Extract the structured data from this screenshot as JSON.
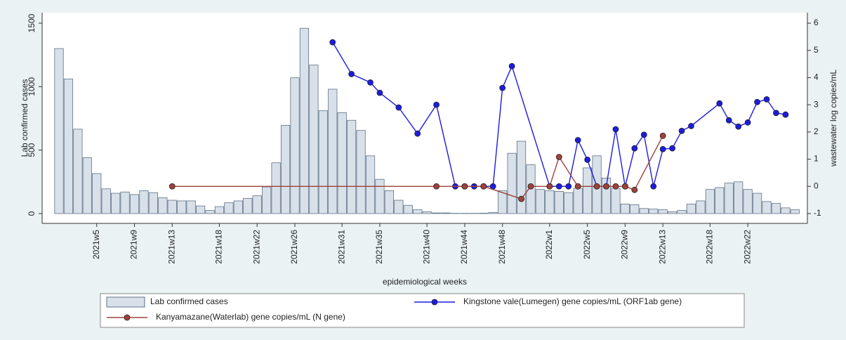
{
  "chart_data": {
    "type": "bar-line",
    "xlabel": "epidemiological weeks",
    "ylabel": "Lab confirmed cases",
    "y2label": "wastewater log copies/mL",
    "categories": [
      null,
      null,
      null,
      null,
      "2021w5",
      null,
      null,
      null,
      "2021w9",
      null,
      null,
      null,
      "2021w13",
      null,
      null,
      null,
      null,
      "2021w18",
      null,
      null,
      null,
      "2021w22",
      null,
      null,
      null,
      "2021w26",
      null,
      null,
      null,
      null,
      "2021w31",
      null,
      null,
      null,
      "2021w35",
      null,
      null,
      null,
      null,
      "2021w40",
      null,
      null,
      null,
      "2021w44",
      null,
      null,
      null,
      "2021w48",
      null,
      null,
      null,
      null,
      "2022w1",
      null,
      null,
      null,
      "2022w5",
      null,
      null,
      null,
      "2022w9",
      null,
      null,
      null,
      "2022w13",
      null,
      null,
      null,
      null,
      "2022w18",
      null,
      null,
      null,
      "2022w22",
      null,
      null,
      null,
      null,
      null
    ],
    "ylim": [
      0,
      1500
    ],
    "yticks": [
      0,
      500,
      1000,
      1500
    ],
    "y2lim": [
      -1,
      6
    ],
    "y2ticks": [
      -1,
      0,
      1,
      2,
      3,
      4,
      5,
      6
    ],
    "series": [
      {
        "name": "Lab confirmed cases",
        "type": "bar",
        "color": "#d8e0e9",
        "values": [
          1300,
          1060,
          665,
          440,
          315,
          195,
          160,
          170,
          150,
          180,
          165,
          125,
          105,
          100,
          100,
          60,
          25,
          55,
          85,
          100,
          120,
          140,
          210,
          400,
          695,
          1070,
          1460,
          1170,
          810,
          980,
          795,
          735,
          655,
          455,
          270,
          180,
          105,
          65,
          30,
          15,
          5,
          5,
          2,
          2,
          2,
          3,
          8,
          180,
          475,
          570,
          385,
          190,
          180,
          175,
          165,
          200,
          360,
          455,
          280,
          200,
          75,
          70,
          40,
          35,
          30,
          15,
          25,
          75,
          100,
          190,
          205,
          240,
          250,
          190,
          160,
          95,
          80,
          45,
          30
        ]
      },
      {
        "name": "Kingstone vale(Lumegen) gene copies/mL (ORF1ab gene)",
        "type": "line",
        "axis": "y2",
        "color": "#1c1ce0",
        "values": [
          null,
          null,
          null,
          null,
          null,
          null,
          null,
          null,
          null,
          null,
          null,
          null,
          null,
          null,
          null,
          null,
          null,
          null,
          null,
          null,
          null,
          null,
          null,
          null,
          null,
          null,
          null,
          null,
          null,
          5.3,
          null,
          4.13,
          null,
          3.82,
          3.44,
          null,
          2.9,
          null,
          1.94,
          null,
          3.0,
          null,
          0,
          0,
          0,
          0,
          0,
          3.62,
          4.42,
          null,
          null,
          null,
          0,
          0,
          0,
          1.7,
          0.98,
          0,
          0,
          2.1,
          0,
          1.4,
          1.9,
          0,
          1.37,
          1.4,
          2.04,
          2.22,
          null,
          null,
          3.05,
          2.43,
          2.2,
          2.35,
          3.1,
          3.2,
          2.7,
          2.64,
          null
        ]
      },
      {
        "name": "Kanyamazane(Waterlab) gene copies/mL (N gene)",
        "type": "line",
        "axis": "y2",
        "color": "#a0413b",
        "values": [
          null,
          null,
          null,
          null,
          null,
          null,
          null,
          null,
          null,
          null,
          null,
          null,
          0,
          null,
          null,
          null,
          null,
          null,
          null,
          null,
          null,
          null,
          null,
          null,
          null,
          null,
          null,
          null,
          null,
          null,
          null,
          null,
          null,
          null,
          null,
          null,
          null,
          null,
          null,
          null,
          0,
          null,
          null,
          0,
          null,
          0,
          null,
          null,
          null,
          -0.46,
          0,
          null,
          0,
          1.08,
          null,
          0,
          null,
          0,
          0,
          0,
          0,
          -0.13,
          null,
          null,
          1.86,
          null,
          null,
          null,
          null,
          null,
          null,
          null,
          null,
          null,
          null,
          null,
          null,
          null,
          null
        ]
      }
    ]
  }
}
